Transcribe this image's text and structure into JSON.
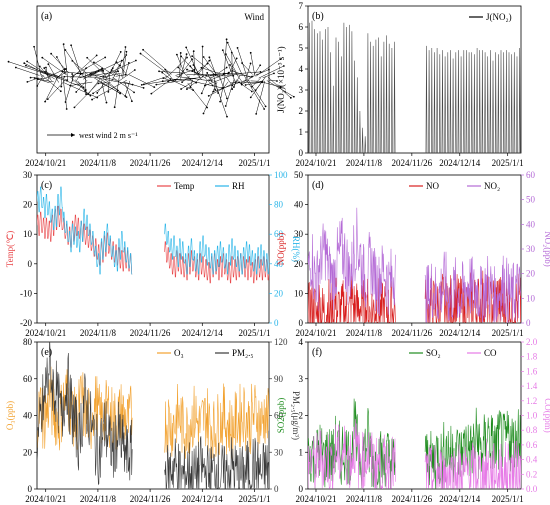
{
  "colors": {
    "wind": "#000000",
    "jno2": "#4a4a4a",
    "temp": "#e8474a",
    "rh": "#29b5e8",
    "no": "#d81e1e",
    "no2": "#b46ad6",
    "o3": "#f2a230",
    "pm25": "#3a3a3a",
    "so2": "#1e8c1e",
    "co": "#e67ae6"
  },
  "chart_data": [
    {
      "type": "line",
      "panel": "(a)",
      "chart": "wind-vectors",
      "legend": [
        "Wind"
      ],
      "annotation": "west wind 2 m s⁻¹",
      "x_ticks": [
        "2024/10/21",
        "2024/11/8",
        "2024/11/26",
        "2024/12/14",
        "2025/1/1"
      ],
      "x_range": [
        "2024-10-18",
        "2025-01-06"
      ],
      "gap": [
        "2024-11-19",
        "2024-12-01"
      ],
      "reference_vector": {
        "u": 2,
        "v": 0
      }
    },
    {
      "type": "line",
      "panel": "(b)",
      "ylabel": "J(NO₂)(×10⁻³ s⁻¹)",
      "legend": [
        "J(NO₂)"
      ],
      "ylim": [
        0,
        7
      ],
      "y_ticks": [
        "0",
        "1",
        "2",
        "3",
        "4",
        "5",
        "6",
        "7"
      ],
      "x_ticks": [
        "2024/10/21",
        "2024/11/8",
        "2024/11/26",
        "2024/12/14",
        "2025/1/1"
      ],
      "x_range": [
        "2024-10-18",
        "2025-01-06"
      ],
      "gap": [
        "2024-11-19",
        "2024-12-01"
      ],
      "daily_max_segments": [
        {
          "start": "2024-10-18",
          "values": [
            6.2,
            6.3,
            5.9,
            5.7,
            5.8,
            5.4,
            5.9,
            6.0,
            4.8,
            3.2,
            5.5,
            5.3,
            4.6,
            6.2,
            6.0,
            6.1,
            5.8,
            4.4,
            3.6,
            2.0,
            1.2,
            0.8,
            5.7,
            5.3,
            5.1,
            5.4,
            5.5,
            4.6,
            5.3,
            5.6,
            5.2,
            5.0,
            5.3
          ]
        },
        {
          "start": "2024-12-01",
          "values": [
            5.1,
            4.9,
            5.0,
            4.8,
            5.0,
            4.7,
            4.9,
            4.6,
            4.8,
            4.9,
            4.5,
            4.8,
            4.9,
            4.6,
            4.9,
            4.9,
            4.8,
            4.8,
            4.7,
            5.0,
            4.9,
            4.9,
            4.8,
            4.6,
            4.9,
            4.4,
            4.8,
            4.7,
            4.9,
            4.8,
            4.9,
            4.8,
            4.7,
            4.8,
            4.6,
            5.0,
            4.7
          ]
        }
      ]
    },
    {
      "type": "line",
      "panel": "(c)",
      "ylabel": "Temp(℃)",
      "ylabel_right": "RH(%)",
      "legend": [
        "Temp",
        "RH"
      ],
      "ylim": [
        -20,
        30
      ],
      "ylim_right": [
        0,
        100
      ],
      "y_ticks": [
        "-20",
        "-10",
        "0",
        "10",
        "20",
        "30"
      ],
      "y_ticks_right": [
        "0",
        "20",
        "40",
        "60",
        "80",
        "100"
      ],
      "x_ticks": [
        "2024/10/21",
        "2024/11/8",
        "2024/11/26",
        "2024/12/14",
        "2025/1/1"
      ],
      "x_range": [
        "2024-10-18",
        "2025-01-06"
      ],
      "gap": [
        "2024-11-19",
        "2024-12-01"
      ],
      "series": [
        {
          "name": "Temp",
          "segments": [
            {
              "start": "2024-10-18",
              "values": [
                13,
                14,
                12,
                12,
                11,
                13,
                15,
                16,
                15,
                12,
                10,
                9,
                11,
                13,
                12,
                11,
                10,
                9,
                8,
                6,
                5,
                3,
                4,
                6,
                7,
                5,
                4,
                3,
                2,
                1,
                2,
                1,
                0
              ]
            },
            {
              "start": "2024-12-01",
              "values": [
                4,
                2,
                0,
                -1,
                1,
                0,
                -1,
                -2,
                0,
                1,
                -1,
                -2,
                0,
                -1,
                -2,
                -3,
                -1,
                0,
                -2,
                -1,
                0,
                -2,
                -3,
                -1,
                -2,
                -1,
                0,
                -1,
                -2,
                -1,
                -3,
                -2,
                -1,
                -2,
                -1,
                -2,
                -1
              ]
            }
          ]
        },
        {
          "name": "RH",
          "segments": [
            {
              "start": "2024-10-18",
              "values": [
                82,
                85,
                78,
                80,
                75,
                70,
                72,
                80,
                85,
                68,
                62,
                55,
                60,
                58,
                55,
                62,
                70,
                66,
                60,
                55,
                45,
                40,
                50,
                55,
                60,
                52,
                45,
                42,
                50,
                55,
                48,
                44,
                40
              ]
            },
            {
              "start": "2024-12-01",
              "values": [
                60,
                55,
                50,
                52,
                45,
                50,
                48,
                40,
                45,
                50,
                42,
                40,
                48,
                52,
                46,
                44,
                40,
                42,
                45,
                48,
                44,
                40,
                46,
                50,
                45,
                42,
                40,
                44,
                48,
                46,
                42,
                40,
                44,
                46,
                42,
                40,
                44
              ]
            }
          ]
        }
      ]
    },
    {
      "type": "line",
      "panel": "(d)",
      "ylabel": "NO(ppb)",
      "ylabel_right": "NO₂(ppb)",
      "legend": [
        "NO",
        "NO₂"
      ],
      "ylim": [
        0,
        50
      ],
      "ylim_right": [
        0,
        60
      ],
      "y_ticks": [
        "0",
        "10",
        "20",
        "30",
        "40",
        "50"
      ],
      "y_ticks_right": [
        "0",
        "10",
        "20",
        "30",
        "40",
        "50",
        "60"
      ],
      "x_ticks": [
        "2024/10/21",
        "2024/11/8",
        "2024/11/26",
        "2024/12/14",
        "2025/1/1"
      ],
      "x_range": [
        "2024-10-18",
        "2025-01-06"
      ],
      "gap": [
        "2024-11-19",
        "2024-12-01"
      ],
      "series": [
        {
          "name": "NO",
          "segments": [
            {
              "start": "2024-10-18",
              "values": [
                3,
                5,
                4,
                2,
                6,
                3,
                4,
                5,
                2,
                3,
                6,
                4,
                3,
                5,
                4,
                3,
                8,
                5,
                4,
                6,
                3,
                4,
                5,
                3,
                4,
                6,
                5,
                3,
                4,
                5,
                3,
                4,
                5
              ]
            },
            {
              "start": "2024-12-01",
              "values": [
                5,
                4,
                6,
                5,
                4,
                6,
                7,
                5,
                4,
                6,
                5,
                7,
                6,
                5,
                4,
                6,
                5,
                7,
                6,
                5,
                6,
                8,
                7,
                6,
                5,
                6,
                7,
                8,
                6,
                5,
                7,
                6,
                5,
                6,
                7,
                5,
                6
              ]
            }
          ]
        },
        {
          "name": "NO₂",
          "segments": [
            {
              "start": "2024-10-18",
              "values": [
                22,
                26,
                20,
                18,
                24,
                28,
                30,
                24,
                20,
                18,
                22,
                26,
                30,
                28,
                24,
                20,
                22,
                30,
                34,
                28,
                22,
                18,
                20,
                24,
                22,
                18,
                16,
                20,
                22,
                18,
                16,
                18,
                20
              ]
            },
            {
              "start": "2024-12-01",
              "values": [
                10,
                12,
                14,
                12,
                10,
                12,
                14,
                16,
                12,
                10,
                12,
                14,
                12,
                10,
                12,
                14,
                16,
                14,
                12,
                14,
                12,
                10,
                14,
                16,
                14,
                12,
                10,
                12,
                14,
                16,
                14,
                12,
                10,
                12,
                14,
                12,
                10
              ]
            }
          ]
        }
      ]
    },
    {
      "type": "line",
      "panel": "(e)",
      "ylabel": "O₃(ppb)",
      "ylabel_right": "PM₂.₅(μg/m³)",
      "legend": [
        "O₃",
        "PM₂.₅"
      ],
      "ylim": [
        0,
        80
      ],
      "ylim_right": [
        0,
        120
      ],
      "y_ticks": [
        "0",
        "20",
        "40",
        "60",
        "80"
      ],
      "y_ticks_right": [
        "0",
        "30",
        "60",
        "90",
        "120"
      ],
      "x_ticks": [
        "2024/10/21",
        "2024/11/8",
        "2024/11/26",
        "2024/12/14",
        "2025/1/1"
      ],
      "x_range": [
        "2024-10-18",
        "2025-01-06"
      ],
      "gap": [
        "2024-11-19",
        "2024-12-01"
      ],
      "series": [
        {
          "name": "O₃",
          "segments": [
            {
              "start": "2024-10-18",
              "values": [
                40,
                45,
                38,
                42,
                50,
                44,
                40,
                36,
                42,
                48,
                52,
                46,
                40,
                38,
                44,
                48,
                42,
                40,
                36,
                44,
                46,
                40,
                38,
                42,
                44,
                40,
                38,
                36,
                40,
                42,
                38,
                36,
                40
              ]
            },
            {
              "start": "2024-12-01",
              "values": [
                36,
                38,
                34,
                36,
                40,
                38,
                34,
                32,
                36,
                38,
                40,
                36,
                34,
                38,
                40,
                36,
                34,
                32,
                36,
                38,
                40,
                36,
                34,
                32,
                36,
                38,
                40,
                42,
                38,
                36,
                40,
                42,
                38,
                36,
                40,
                38,
                36
              ]
            }
          ]
        },
        {
          "name": "PM₂.₅",
          "segments": [
            {
              "start": "2024-10-18",
              "values": [
                40,
                55,
                70,
                90,
                100,
                85,
                80,
                70,
                60,
                75,
                85,
                70,
                60,
                50,
                40,
                55,
                70,
                65,
                55,
                45,
                35,
                30,
                40,
                50,
                45,
                35,
                30,
                40,
                45,
                35,
                30,
                25,
                30
              ]
            },
            {
              "start": "2024-12-01",
              "values": [
                15,
                12,
                18,
                20,
                15,
                12,
                10,
                14,
                16,
                12,
                10,
                14,
                18,
                15,
                12,
                10,
                12,
                16,
                14,
                12,
                10,
                12,
                15,
                18,
                14,
                12,
                10,
                12,
                14,
                16,
                20,
                18,
                15,
                12,
                14,
                16,
                12
              ]
            }
          ]
        }
      ]
    },
    {
      "type": "line",
      "panel": "(f)",
      "ylabel": "SO2(ppb)",
      "ylabel_right": "CO(ppm)",
      "legend": [
        "SO₂",
        "CO"
      ],
      "ylim": [
        0,
        4
      ],
      "ylim_right": [
        0,
        2.0
      ],
      "y_ticks": [
        "0",
        "1",
        "2",
        "3",
        "4"
      ],
      "y_ticks_right": [
        "0.0",
        "0.2",
        "0.4",
        "0.6",
        "0.8",
        "1.0",
        "1.2",
        "1.4",
        "1.6",
        "1.8",
        "2.0"
      ],
      "x_ticks": [
        "2024/10/21",
        "2024/11/8",
        "2024/11/26",
        "2024/12/14",
        "2025/1/1"
      ],
      "x_range": [
        "2024-10-18",
        "2025-01-06"
      ],
      "gap": [
        "2024-11-19",
        "2024-12-01"
      ],
      "series": [
        {
          "name": "SO₂",
          "segments": [
            {
              "start": "2024-10-18",
              "values": [
                0.9,
                1.0,
                0.8,
                0.9,
                1.1,
                0.9,
                0.8,
                1.0,
                0.9,
                0.8,
                1.2,
                1.0,
                0.9,
                1.1,
                1.0,
                0.9,
                1.0,
                1.6,
                1.2,
                1.0,
                0.9,
                1.1,
                1.4,
                1.0,
                0.8,
                0.7,
                0.9,
                0.8,
                0.7,
                0.9,
                0.8,
                0.7,
                0.8
              ]
            },
            {
              "start": "2024-12-01",
              "values": [
                0.8,
                0.9,
                0.7,
                0.8,
                1.0,
                0.9,
                0.8,
                1.0,
                1.1,
                0.9,
                1.0,
                1.2,
                1.0,
                0.9,
                1.1,
                1.3,
                1.1,
                1.0,
                1.2,
                1.4,
                1.1,
                1.0,
                1.2,
                1.6,
                1.3,
                1.2,
                1.1,
                1.3,
                1.4,
                1.2,
                1.3,
                1.5,
                1.3,
                1.2,
                1.4,
                1.6,
                1.4
              ]
            }
          ]
        },
        {
          "name": "CO",
          "segments": [
            {
              "start": "2024-10-18",
              "values": [
                0.35,
                0.4,
                0.3,
                0.35,
                0.45,
                0.4,
                0.35,
                0.4,
                0.3,
                0.35,
                0.5,
                0.45,
                0.4,
                0.5,
                0.45,
                0.4,
                0.45,
                0.6,
                0.5,
                0.4,
                0.35,
                0.4,
                0.5,
                0.4,
                0.35,
                0.3,
                0.35,
                0.3,
                0.3,
                0.35,
                0.3,
                0.3,
                0.3
              ]
            },
            {
              "start": "2024-12-01",
              "values": [
                0.2,
                0.18,
                0.15,
                0.2,
                0.22,
                0.18,
                0.15,
                0.2,
                0.22,
                0.2,
                0.18,
                0.2,
                0.22,
                0.2,
                0.18,
                0.2,
                0.24,
                0.22,
                0.2,
                0.22,
                0.2,
                0.18,
                0.22,
                0.26,
                0.22,
                0.2,
                0.22,
                0.24,
                0.22,
                0.2,
                0.22,
                0.26,
                0.24,
                0.22,
                0.24,
                0.26,
                0.24
              ]
            }
          ]
        }
      ]
    }
  ]
}
